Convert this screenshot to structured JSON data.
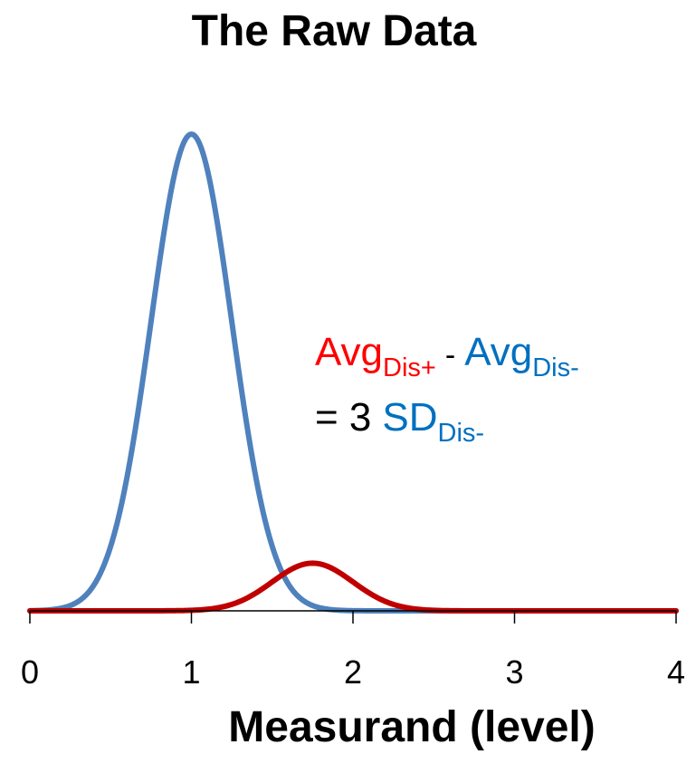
{
  "chart_data": {
    "type": "line",
    "title": "The Raw Data",
    "xlabel": "Measurand (level)",
    "ylabel": "",
    "xlim": [
      0,
      4
    ],
    "x_ticks": [
      "0",
      "1",
      "2",
      "3",
      "4"
    ],
    "grid": false,
    "legend": "none",
    "series": [
      {
        "color": "#4f81bd",
        "distribution": "normal",
        "mean": 1.0,
        "sd": 0.25,
        "relative_height": 1.0
      },
      {
        "color": "#c00000",
        "distribution": "normal",
        "mean": 1.75,
        "sd": 0.25,
        "relative_height": 0.1
      }
    ],
    "annotation": {
      "line1": {
        "term1": "Avg",
        "term1_sub": "Dis+",
        "operator": "-",
        "term2": "Avg",
        "term2_sub": "Dis-"
      },
      "line2": {
        "prefix": "= 3",
        "term": "SD",
        "term_sub": "Dis-"
      },
      "colors": {
        "red": "#ff0000",
        "blue": "#0070c0",
        "black": "#000000"
      }
    }
  }
}
